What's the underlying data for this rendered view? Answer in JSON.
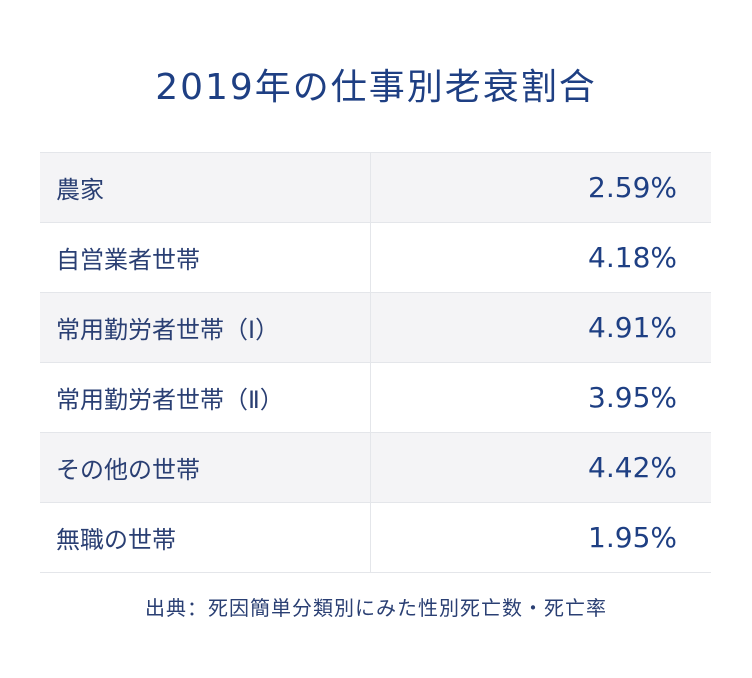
{
  "title": "2019年の仕事別老衰割合",
  "source": "出典：死因簡単分類別にみた性別死亡数・死亡率",
  "chart_data": {
    "type": "table",
    "title": "2019年の仕事別老衰割合",
    "rows": [
      {
        "label": "農家",
        "value": "2.59%"
      },
      {
        "label": "自営業者世帯",
        "value": "4.18%"
      },
      {
        "label": "常用勤労者世帯（Ⅰ）",
        "value": "4.91%"
      },
      {
        "label": "常用勤労者世帯（Ⅱ）",
        "value": "3.95%"
      },
      {
        "label": "その他の世帯",
        "value": "4.42%"
      },
      {
        "label": "無職の世帯",
        "value": "1.95%"
      }
    ],
    "colors": {
      "text": "#1e3f83",
      "shaded_row": "#f4f4f6",
      "border": "#e4e6ea"
    }
  }
}
